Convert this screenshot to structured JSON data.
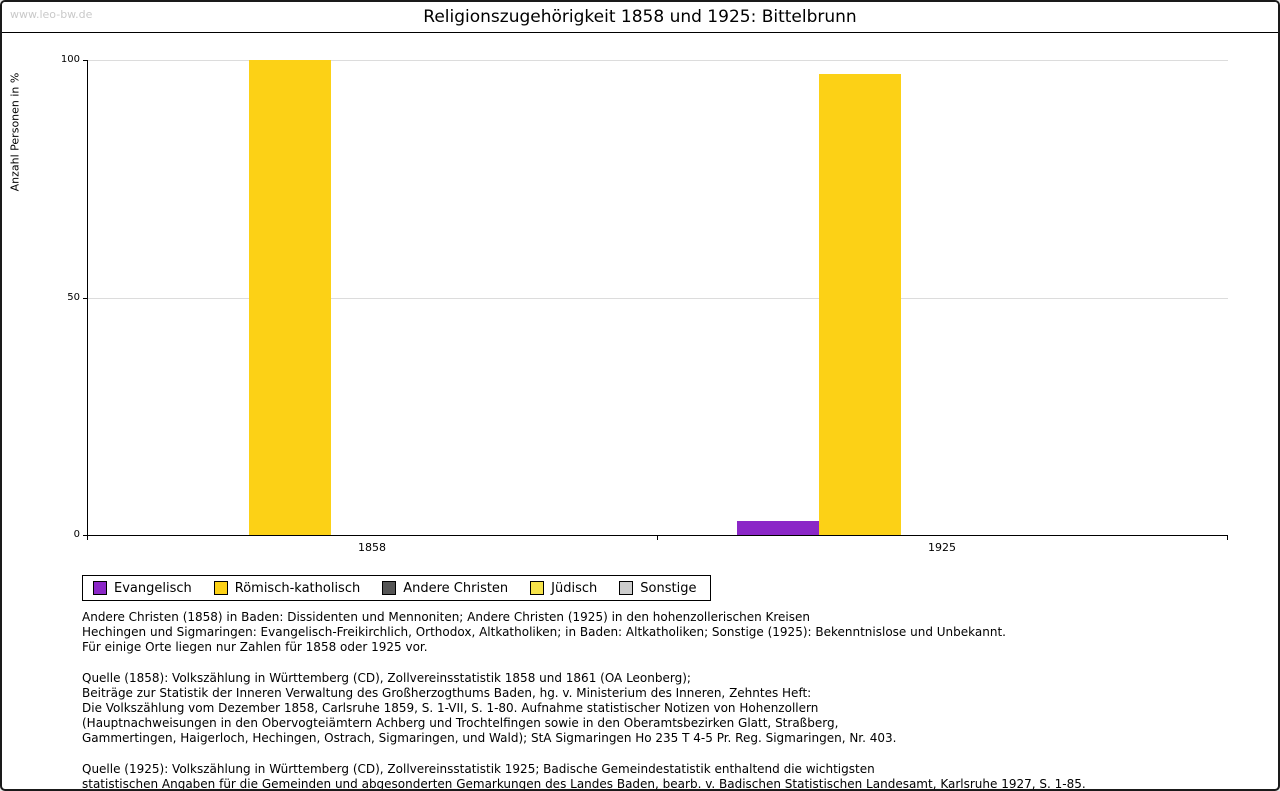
{
  "page": {
    "watermark": "www.leo-bw.de",
    "title": "Religionszugehörigkeit 1858 und 1925: Bittelbrunn"
  },
  "chart_data": {
    "type": "bar",
    "title": "Religionszugehörigkeit 1858 und 1925: Bittelbrunn",
    "xlabel": "",
    "ylabel": "Anzahl Personen in %",
    "ylim": [
      0,
      100
    ],
    "yticks": [
      0,
      50,
      100
    ],
    "grid": true,
    "legend_position": "bottom",
    "categories": [
      "1858",
      "1925"
    ],
    "series": [
      {
        "name": "Evangelisch",
        "color": "#8b27c7",
        "values": [
          0,
          3
        ]
      },
      {
        "name": "Römisch-katholisch",
        "color": "#fcd116",
        "values": [
          100,
          97
        ]
      },
      {
        "name": "Andere Christen",
        "color": "#555555",
        "values": [
          0,
          0
        ]
      },
      {
        "name": "Jüdisch",
        "color": "#f6e34a",
        "values": [
          0,
          0
        ]
      },
      {
        "name": "Sonstige",
        "color": "#cccccc",
        "values": [
          0,
          0
        ]
      }
    ]
  },
  "notes": {
    "para1": "Andere Christen (1858) in Baden: Dissidenten und Mennoniten; Andere Christen (1925) in den hohenzollerischen Kreisen\nHechingen und Sigmaringen: Evangelisch-Freikirchlich, Orthodox, Altkatholiken; in Baden: Altkatholiken; Sonstige (1925): Bekenntnislose und Unbekannt.\nFür einige Orte liegen nur Zahlen für 1858 oder 1925 vor.",
    "para2": "Quelle (1858): Volkszählung in Württemberg (CD), Zollvereinsstatistik 1858 und 1861 (OA Leonberg);\nBeiträge zur Statistik der Inneren Verwaltung des Großherzogthums Baden, hg. v. Ministerium des Inneren, Zehntes Heft:\nDie Volkszählung vom Dezember 1858, Carlsruhe 1859, S. 1-VII, S. 1-80. Aufnahme statistischer Notizen von Hohenzollern\n(Hauptnachweisungen in den Obervogteiämtern Achberg und Trochtelfingen sowie in den Oberamtsbezirken Glatt, Straßberg,\nGammertingen, Haigerloch, Hechingen, Ostrach, Sigmaringen, und Wald); StA Sigmaringen Ho 235 T 4-5 Pr. Reg. Sigmaringen, Nr. 403.",
    "para3": "Quelle (1925): Volkszählung in Württemberg (CD), Zollvereinsstatistik 1925; Badische Gemeindestatistik enthaltend die wichtigsten\nstatistischen Angaben für die Gemeinden und abgesonderten Gemarkungen des Landes Baden, bearb. v. Badischen Statistischen Landesamt, Karlsruhe 1927, S. 1-85."
  }
}
